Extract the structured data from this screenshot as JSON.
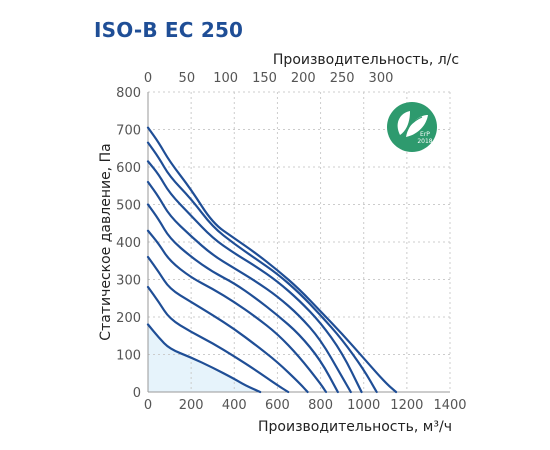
{
  "title": "ISO-B EC 250",
  "badge": {
    "line1": "ErP",
    "line2": "2018",
    "icon": "leaf-icon",
    "color": "#2e9a6e"
  },
  "colors": {
    "curve": "#1f4e96",
    "fill": "#e6f3fb",
    "grid": "#cccccc",
    "title": "#1f4e96"
  },
  "chart_data": {
    "type": "line",
    "xlabel": "Производительность, м³/ч",
    "x2label": "Производительность, л/с",
    "ylabel": "Статическое давление, Па",
    "xlim": [
      0,
      1400
    ],
    "x2lim": [
      0,
      388.9
    ],
    "ylim": [
      0,
      800
    ],
    "xticks": [
      0,
      200,
      400,
      600,
      800,
      1000,
      1200,
      1400
    ],
    "x2ticks": [
      0,
      50,
      100,
      150,
      200,
      250,
      300
    ],
    "yticks": [
      0,
      100,
      200,
      300,
      400,
      500,
      600,
      700,
      800
    ],
    "fill_under_series": 0,
    "series": [
      {
        "x": [
          0,
          50,
          100,
          200,
          300,
          400,
          450,
          520
        ],
        "y": [
          180,
          145,
          115,
          92,
          65,
          35,
          18,
          0
        ]
      },
      {
        "x": [
          0,
          50,
          100,
          200,
          300,
          400,
          500,
          600,
          650
        ],
        "y": [
          280,
          240,
          195,
          160,
          130,
          95,
          58,
          18,
          0
        ]
      },
      {
        "x": [
          0,
          50,
          100,
          200,
          300,
          400,
          500,
          600,
          700,
          740
        ],
        "y": [
          360,
          320,
          275,
          240,
          205,
          168,
          125,
          80,
          25,
          0
        ]
      },
      {
        "x": [
          0,
          50,
          100,
          200,
          300,
          400,
          500,
          600,
          700,
          800,
          825
        ],
        "y": [
          430,
          395,
          350,
          305,
          275,
          240,
          200,
          155,
          95,
          22,
          0
        ]
      },
      {
        "x": [
          0,
          50,
          100,
          200,
          300,
          400,
          500,
          600,
          700,
          800,
          880
        ],
        "y": [
          500,
          460,
          410,
          360,
          320,
          290,
          250,
          205,
          155,
          85,
          0
        ]
      },
      {
        "x": [
          0,
          50,
          100,
          200,
          300,
          400,
          500,
          600,
          700,
          800,
          900,
          940
        ],
        "y": [
          560,
          520,
          470,
          415,
          365,
          330,
          295,
          255,
          205,
          140,
          40,
          0
        ]
      },
      {
        "x": [
          0,
          50,
          100,
          200,
          300,
          400,
          500,
          600,
          700,
          800,
          900,
          990
        ],
        "y": [
          615,
          580,
          530,
          470,
          410,
          370,
          335,
          295,
          245,
          185,
          105,
          0
        ]
      },
      {
        "x": [
          0,
          50,
          100,
          200,
          300,
          400,
          500,
          600,
          700,
          800,
          900,
          1000,
          1060
        ],
        "y": [
          665,
          625,
          575,
          515,
          440,
          395,
          355,
          315,
          265,
          205,
          140,
          60,
          0
        ]
      },
      {
        "x": [
          0,
          50,
          100,
          200,
          300,
          400,
          500,
          600,
          700,
          800,
          900,
          1000,
          1100,
          1150
        ],
        "y": [
          705,
          665,
          615,
          540,
          450,
          410,
          370,
          325,
          275,
          215,
          155,
          90,
          25,
          0
        ]
      }
    ]
  }
}
